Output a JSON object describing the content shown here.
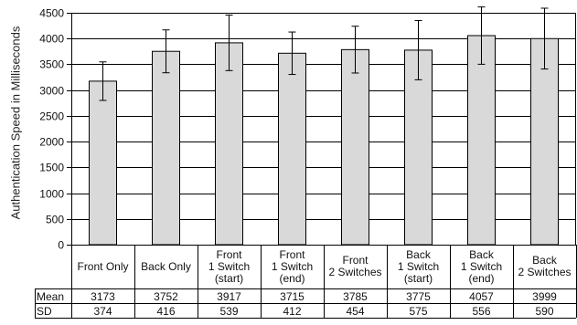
{
  "chart_data": {
    "type": "bar",
    "ylabel": "Authentication Speed in Milliseconds",
    "ylim": [
      0,
      4500
    ],
    "yticks": [
      0,
      500,
      1000,
      1500,
      2000,
      2500,
      3000,
      3500,
      4000,
      4500
    ],
    "grid": true,
    "categories": [
      "Front Only",
      "Back Only",
      "Front\n1 Switch\n(start)",
      "Front\n1 Switch\n(end)",
      "Front\n2 Switches",
      "Back\n1 Switch\n(start)",
      "Back\n1 Switch\n(end)",
      "Back\n2 Switches"
    ],
    "values": [
      3173,
      3752,
      3917,
      3715,
      3785,
      3775,
      4057,
      3999
    ],
    "error": [
      374,
      416,
      539,
      412,
      454,
      575,
      556,
      590
    ],
    "bar_color": "#d9d9d9",
    "table": {
      "rows": [
        {
          "label": "Mean",
          "values": [
            "3173",
            "3752",
            "3917",
            "3715",
            "3785",
            "3775",
            "4057",
            "3999"
          ]
        },
        {
          "label": "SD",
          "values": [
            "374",
            "416",
            "539",
            "412",
            "454",
            "575",
            "556",
            "590"
          ]
        }
      ]
    }
  }
}
